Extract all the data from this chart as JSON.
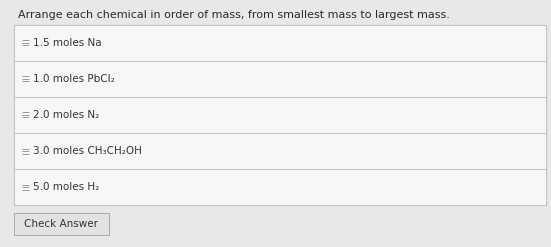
{
  "title": "Arrange each chemical in order of mass, from smallest mass to largest mass.",
  "title_fontsize": 8.0,
  "title_color": "#2a2a2a",
  "background_color": "#e8e8e8",
  "outer_box_bg": "#f0f0f0",
  "outer_box_border": "#aaaaaa",
  "rows": [
    "1.5 moles Na",
    "1.0 moles PbCl₂",
    "2.0 moles N₂",
    "3.0 moles CH₃CH₂OH",
    "5.0 moles H₂"
  ],
  "row_bg": "#f7f7f7",
  "row_border": "#c0c0c0",
  "row_text_color": "#333333",
  "row_fontsize": 7.5,
  "drag_icon_color": "#999999",
  "button_text": "Check Answer",
  "button_bg": "#e2e2e2",
  "button_border": "#aaaaaa",
  "button_fontsize": 7.5,
  "button_text_color": "#333333",
  "fig_width": 5.51,
  "fig_height": 2.47,
  "dpi": 100
}
